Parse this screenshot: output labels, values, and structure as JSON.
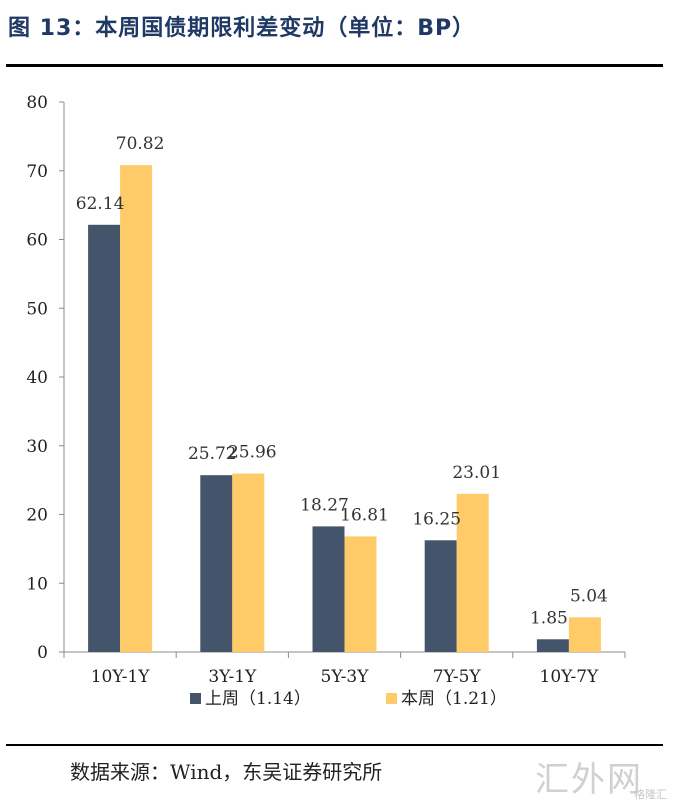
{
  "figure": {
    "title": "图 13：本周国债期限利差变动（单位：BP）",
    "source": "数据来源：Wind，东吴证券研究所",
    "watermark": "汇外网",
    "watermark_small": "格隆汇"
  },
  "colors": {
    "title": "#1f3864",
    "series_last_week": "#44546a",
    "series_this_week": "#fecb68",
    "axis": "#8c8c8c"
  },
  "chart_data": {
    "type": "bar",
    "categories": [
      "10Y-1Y",
      "3Y-1Y",
      "5Y-3Y",
      "7Y-5Y",
      "10Y-7Y"
    ],
    "series": [
      {
        "name": "上周（1.14）",
        "values": [
          62.14,
          25.72,
          18.27,
          16.25,
          1.85
        ]
      },
      {
        "name": "本周（1.21）",
        "values": [
          70.82,
          25.96,
          16.81,
          23.01,
          5.04
        ]
      }
    ],
    "data_labels": [
      [
        "62.14",
        "25.72",
        "18.27",
        "16.25",
        "1.85"
      ],
      [
        "70.82",
        "25.96",
        "16.81",
        "23.01",
        "5.04"
      ]
    ],
    "ylim": [
      0,
      80
    ],
    "yticks": [
      0,
      10,
      20,
      30,
      40,
      50,
      60,
      70,
      80
    ],
    "xlabel": "",
    "ylabel": "",
    "grid": false,
    "legend_position": "bottom"
  }
}
